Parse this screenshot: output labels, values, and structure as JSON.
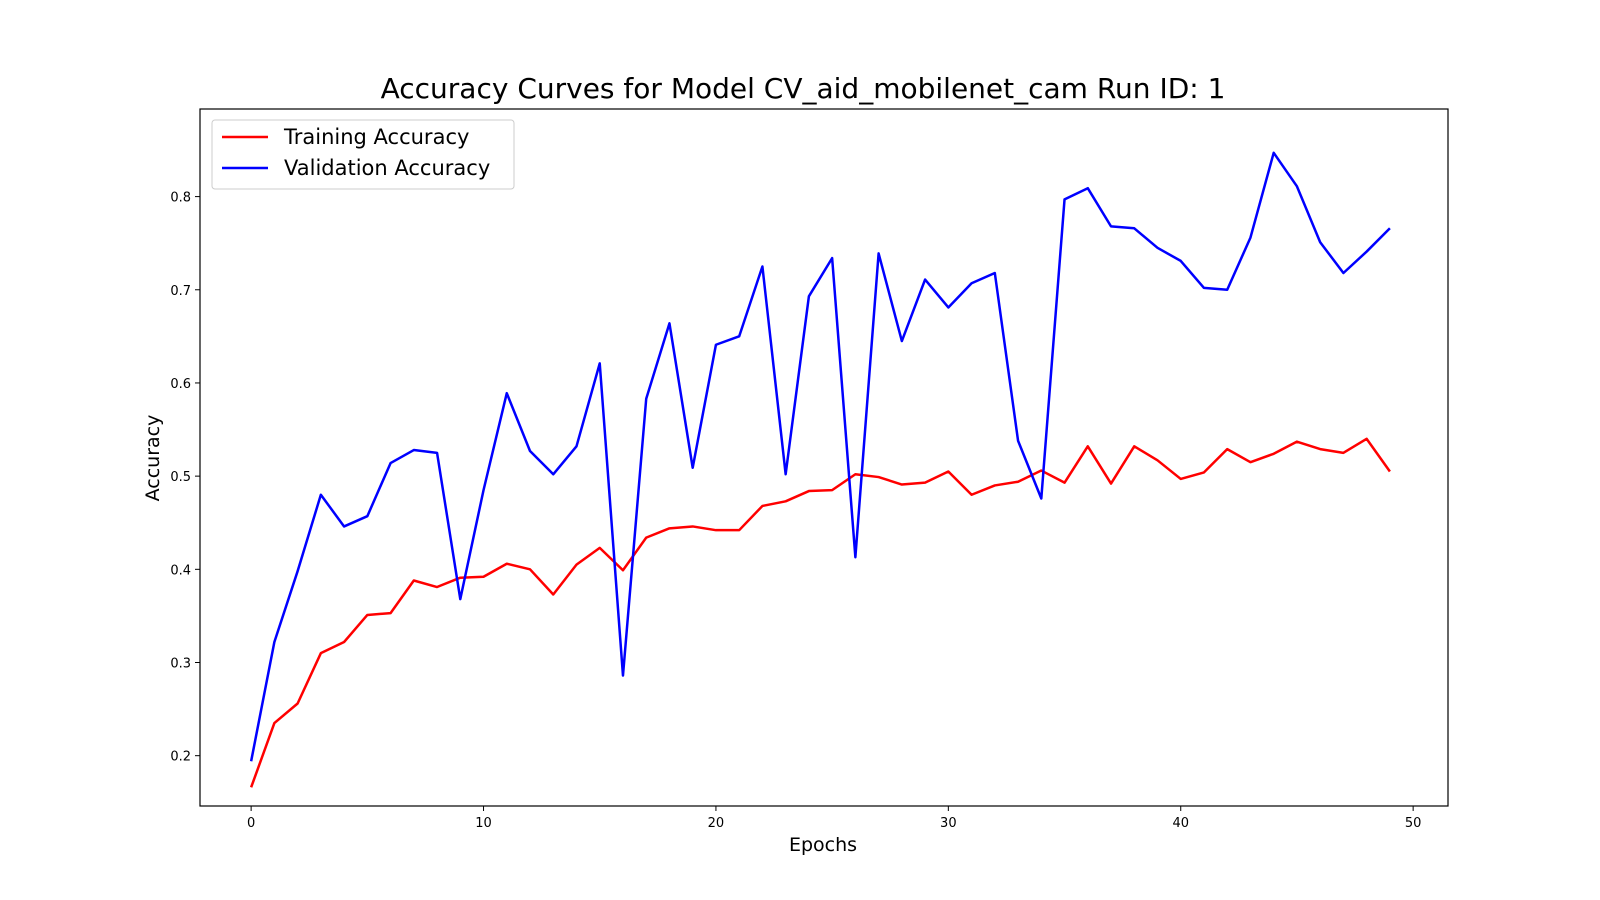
{
  "chart_data": {
    "type": "line",
    "title": "Accuracy Curves for Model CV_aid_mobilenet_cam Run ID: 1",
    "xlabel": "Epochs",
    "ylabel": "Accuracy",
    "xlim": [
      -2.2,
      51.5
    ],
    "ylim": [
      0.146,
      0.894
    ],
    "xticks": [
      0,
      10,
      20,
      30,
      40,
      50
    ],
    "yticks": [
      0.2,
      0.3,
      0.4,
      0.5,
      0.6,
      0.7,
      0.8
    ],
    "xtick_labels": [
      "0",
      "10",
      "20",
      "30",
      "40",
      "50"
    ],
    "ytick_labels": [
      "0.2",
      "0.3",
      "0.4",
      "0.5",
      "0.6",
      "0.7",
      "0.8"
    ],
    "grid": false,
    "legend_position": "upper-left",
    "x": [
      0,
      1,
      2,
      3,
      4,
      5,
      6,
      7,
      8,
      9,
      10,
      11,
      12,
      13,
      14,
      15,
      16,
      17,
      18,
      19,
      20,
      21,
      22,
      23,
      24,
      25,
      26,
      27,
      28,
      29,
      30,
      31,
      32,
      33,
      34,
      35,
      36,
      37,
      38,
      39,
      40,
      41,
      42,
      43,
      44,
      45,
      46,
      47,
      48,
      49
    ],
    "series": [
      {
        "name": "Training Accuracy",
        "color": "#ff0000",
        "values": [
          0.166,
          0.235,
          0.256,
          0.31,
          0.322,
          0.351,
          0.353,
          0.388,
          0.381,
          0.391,
          0.392,
          0.406,
          0.4,
          0.373,
          0.405,
          0.423,
          0.399,
          0.434,
          0.444,
          0.446,
          0.442,
          0.442,
          0.468,
          0.473,
          0.484,
          0.485,
          0.502,
          0.499,
          0.491,
          0.493,
          0.505,
          0.48,
          0.49,
          0.494,
          0.506,
          0.493,
          0.532,
          0.492,
          0.532,
          0.517,
          0.497,
          0.504,
          0.529,
          0.515,
          0.524,
          0.537,
          0.529,
          0.525,
          0.54,
          0.505
        ]
      },
      {
        "name": "Validation Accuracy",
        "color": "#0000ff",
        "values": [
          0.194,
          0.322,
          0.398,
          0.48,
          0.446,
          0.457,
          0.514,
          0.528,
          0.525,
          0.368,
          0.485,
          0.589,
          0.527,
          0.502,
          0.532,
          0.621,
          0.286,
          0.583,
          0.664,
          0.509,
          0.641,
          0.65,
          0.725,
          0.502,
          0.693,
          0.734,
          0.413,
          0.739,
          0.645,
          0.711,
          0.681,
          0.707,
          0.718,
          0.538,
          0.476,
          0.797,
          0.809,
          0.768,
          0.766,
          0.745,
          0.731,
          0.702,
          0.7,
          0.756,
          0.847,
          0.811,
          0.751,
          0.718,
          0.741,
          0.766
        ]
      }
    ]
  }
}
